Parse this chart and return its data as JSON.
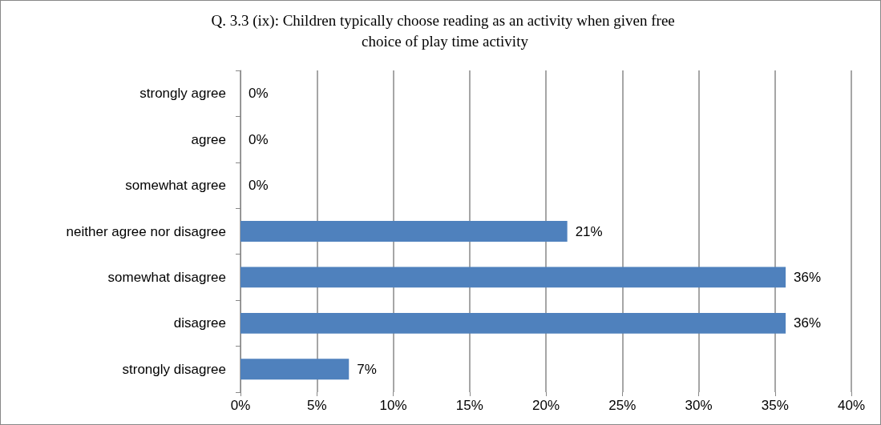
{
  "chart_data": {
    "type": "bar",
    "orientation": "horizontal",
    "title": "Q. 3.3 (ix): Children typically choose reading as an activity when given free choice of play time activity",
    "categories": [
      "strongly agree",
      "agree",
      "somewhat agree",
      "neither agree nor disagree",
      "somewhat disagree",
      "disagree",
      "strongly disagree"
    ],
    "values": [
      0,
      0,
      0,
      21.4,
      35.7,
      35.7,
      7.1
    ],
    "value_labels": [
      "0%",
      "0%",
      "0%",
      "21%",
      "36%",
      "36%",
      "7%"
    ],
    "color": "#4f81bd",
    "xlim": [
      0,
      40
    ],
    "xticks": [
      {
        "value": 0,
        "label": "0%"
      },
      {
        "value": 5,
        "label": "5%"
      },
      {
        "value": 10,
        "label": "10%"
      },
      {
        "value": 15,
        "label": "15%"
      },
      {
        "value": 20,
        "label": "20%"
      },
      {
        "value": 25,
        "label": "25%"
      },
      {
        "value": 30,
        "label": "30%"
      },
      {
        "value": 35,
        "label": "35%"
      },
      {
        "value": 40,
        "label": "40%"
      }
    ],
    "grid": "x"
  }
}
